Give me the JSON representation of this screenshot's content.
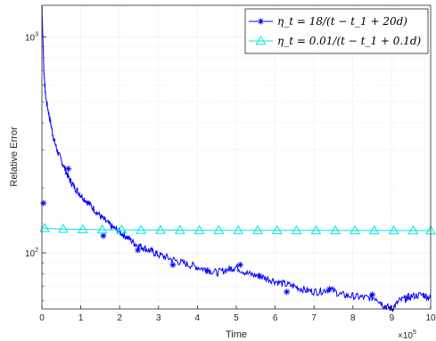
{
  "chart_data": {
    "type": "line",
    "xlabel": "Time",
    "ylabel": "Relative Error",
    "x_multiplier_label": "×10",
    "x_multiplier_exp": "5",
    "x_ticks": [
      0,
      1,
      2,
      3,
      4,
      5,
      6,
      7,
      8,
      9,
      10
    ],
    "x_tick_labels": [
      "0",
      "1",
      "2",
      "3",
      "4",
      "5",
      "6",
      "7",
      "8",
      "9",
      "10"
    ],
    "y_scale": "log",
    "y_ticks": [
      100,
      1000
    ],
    "y_tick_labels": [
      {
        "base": "10",
        "exp": "2"
      },
      {
        "base": "10",
        "exp": "3"
      }
    ],
    "xlim": [
      0,
      10
    ],
    "ylim": [
      55,
      1400
    ],
    "grid": true,
    "legend_position": "top-right",
    "colors": {
      "series1": "#0000ff",
      "series2": "#00e5e5"
    },
    "series": [
      {
        "name": "η_t = 18/(t − t_1 + 20d)",
        "marker": "asterisk",
        "x": [
          0,
          0.05,
          0.1,
          0.2,
          0.3,
          0.4,
          0.55,
          0.7,
          0.85,
          1.0,
          1.2,
          1.4,
          1.6,
          1.8,
          2.0,
          2.2,
          2.4,
          2.6,
          2.8,
          3.0,
          3.3,
          3.6,
          3.9,
          4.2,
          4.5,
          4.8,
          5.0,
          5.3,
          5.6,
          5.9,
          6.2,
          6.5,
          6.8,
          7.1,
          7.4,
          7.7,
          8.0,
          8.3,
          8.6,
          8.8,
          9.0,
          9.2,
          9.5,
          9.8,
          10.0
        ],
        "y": [
          1400,
          700,
          520,
          420,
          340,
          295,
          255,
          220,
          200,
          185,
          170,
          155,
          142,
          132,
          125,
          118,
          110,
          106,
          102,
          98,
          94,
          90,
          87,
          84,
          81,
          84,
          86,
          80,
          78,
          75,
          72,
          70,
          67,
          66,
          68,
          64,
          63,
          62,
          62,
          57,
          55,
          60,
          63,
          64,
          62
        ],
        "marker_x": [
          0.04,
          0.68,
          1.58,
          2.47,
          3.37,
          4.25,
          5.1,
          5.6,
          6.3,
          7.4,
          8.5,
          9.4
        ],
        "marker_y": [
          170,
          245,
          120,
          103,
          88,
          83,
          88,
          78,
          66,
          68,
          64,
          62
        ]
      },
      {
        "name": "η_t = 0.01/(t − t_1 + 0.1d)",
        "marker": "triangle",
        "x": [
          0,
          0.05,
          0.5,
          1.0,
          1.5,
          2.0,
          2.5,
          3.0,
          3.5,
          4.0,
          4.5,
          5.0,
          5.5,
          6.0,
          6.5,
          7.0,
          7.5,
          8.0,
          8.5,
          9.0,
          9.5,
          10.0
        ],
        "y": [
          132,
          130,
          129,
          128.5,
          128,
          127.8,
          127.6,
          127.5,
          127.4,
          127.3,
          127.2,
          127.2,
          127.1,
          127.1,
          127,
          127,
          127,
          126.9,
          126.9,
          126.9,
          126.8,
          126.8
        ],
        "marker_x": [
          0.07,
          0.55,
          1.05,
          1.55,
          2.05,
          2.55,
          3.05,
          3.55,
          4.05,
          4.55,
          5.05,
          5.55,
          6.05,
          6.55,
          7.05,
          7.55,
          8.05,
          8.55,
          9.05,
          9.55,
          10.0
        ],
        "marker_y": [
          130,
          129,
          128.5,
          128,
          127.8,
          127.6,
          127.5,
          127.4,
          127.3,
          127.2,
          127.2,
          127.1,
          127.1,
          127,
          127,
          127,
          126.9,
          126.9,
          126.9,
          126.8,
          126.8
        ]
      }
    ]
  }
}
